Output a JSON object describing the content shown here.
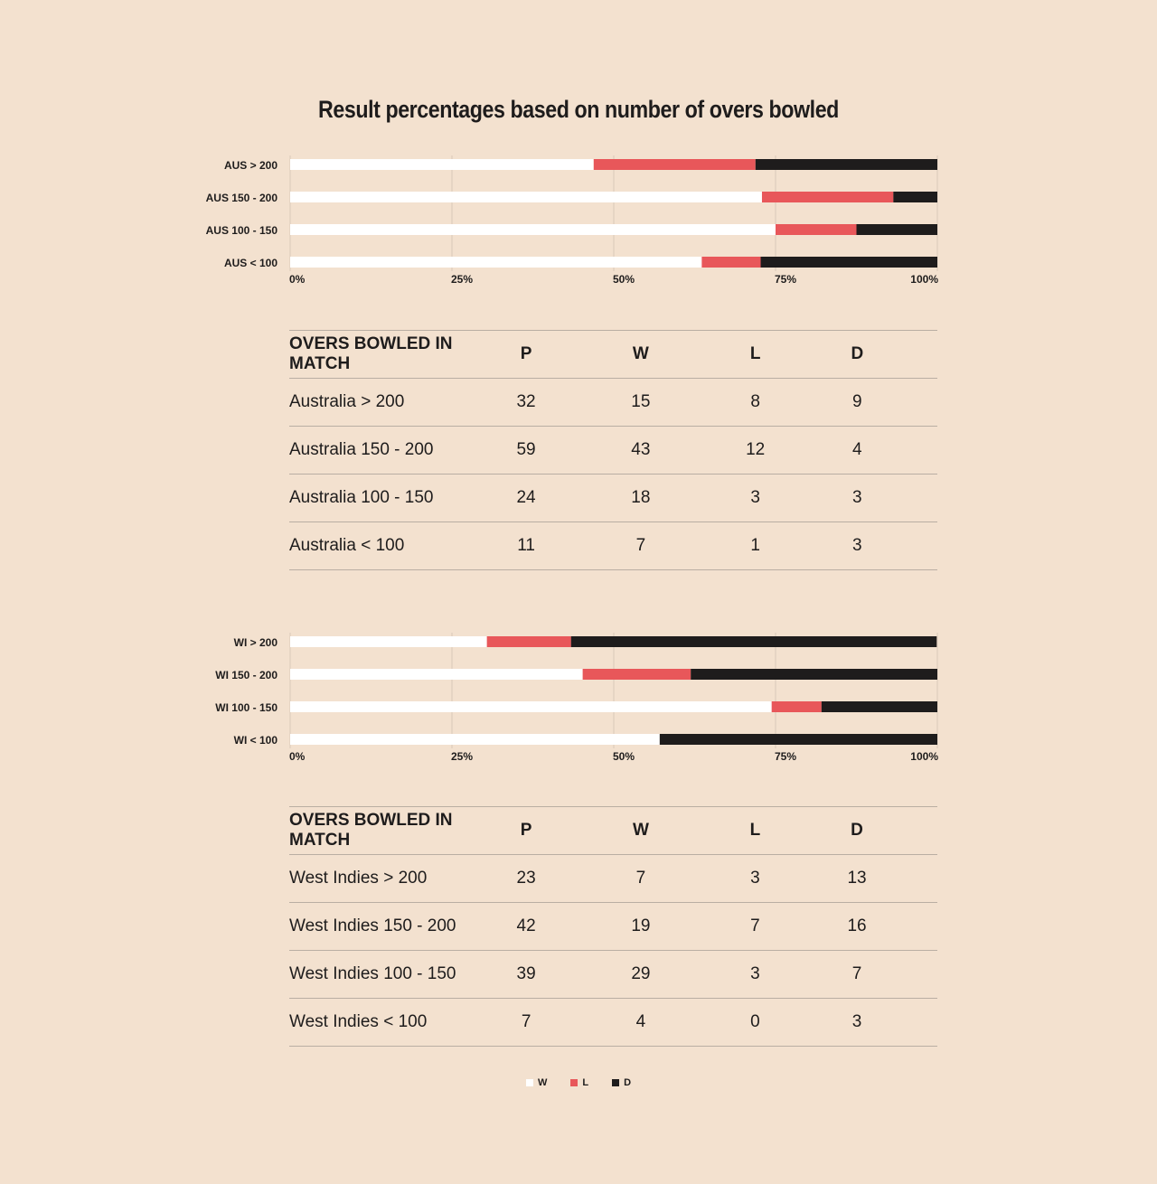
{
  "title": "Result percentages based on number of overs bowled",
  "colors": {
    "W": "#ffffff",
    "L": "#e8575a",
    "D": "#1e1c1c",
    "grid": "#d9c9b8"
  },
  "legend": [
    {
      "key": "W",
      "label": "W"
    },
    {
      "key": "L",
      "label": "L"
    },
    {
      "key": "D",
      "label": "D"
    }
  ],
  "chart_data": [
    {
      "type": "bar",
      "stacked": true,
      "orientation": "horizontal",
      "categories": [
        "AUS > 200",
        "AUS 150 - 200",
        "AUS 100 - 150",
        "AUS < 100"
      ],
      "series": [
        {
          "name": "W",
          "values": [
            46.9,
            72.9,
            75.0,
            63.6
          ]
        },
        {
          "name": "L",
          "values": [
            25.0,
            20.3,
            12.5,
            9.1
          ]
        },
        {
          "name": "D",
          "values": [
            28.1,
            6.8,
            12.5,
            27.3
          ]
        }
      ],
      "xlim": [
        0,
        100
      ],
      "xticks": [
        "0%",
        "25%",
        "50%",
        "75%",
        "100%"
      ],
      "grid": true
    },
    {
      "type": "bar",
      "stacked": true,
      "orientation": "horizontal",
      "categories": [
        "WI > 200",
        "WI 150 - 200",
        "WI 100 - 150",
        "WI < 100"
      ],
      "series": [
        {
          "name": "W",
          "values": [
            30.4,
            45.2,
            74.4,
            57.1
          ]
        },
        {
          "name": "L",
          "values": [
            13.0,
            16.7,
            7.7,
            0
          ]
        },
        {
          "name": "D",
          "values": [
            56.5,
            38.1,
            17.9,
            42.9
          ]
        }
      ],
      "xlim": [
        0,
        100
      ],
      "xticks": [
        "0%",
        "25%",
        "50%",
        "75%",
        "100%"
      ],
      "grid": true
    }
  ],
  "tables": {
    "aus": {
      "headers": [
        "OVERS BOWLED IN MATCH",
        "P",
        "W",
        "L",
        "D"
      ],
      "rows": [
        [
          "Australia > 200",
          "32",
          "15",
          "8",
          "9"
        ],
        [
          "Australia 150 - 200",
          "59",
          "43",
          "12",
          "4"
        ],
        [
          "Australia 100 - 150",
          "24",
          "18",
          "3",
          "3"
        ],
        [
          "Australia < 100",
          "11",
          "7",
          "1",
          "3"
        ]
      ]
    },
    "wi": {
      "headers": [
        "OVERS BOWLED IN MATCH",
        "P",
        "W",
        "L",
        "D"
      ],
      "rows": [
        [
          "West Indies > 200",
          "23",
          "7",
          "3",
          "13"
        ],
        [
          "West Indies 150 - 200",
          "42",
          "19",
          "7",
          "16"
        ],
        [
          "West Indies 100 - 150",
          "39",
          "29",
          "3",
          "7"
        ],
        [
          "West Indies < 100",
          "7",
          "4",
          "0",
          "3"
        ]
      ]
    }
  }
}
